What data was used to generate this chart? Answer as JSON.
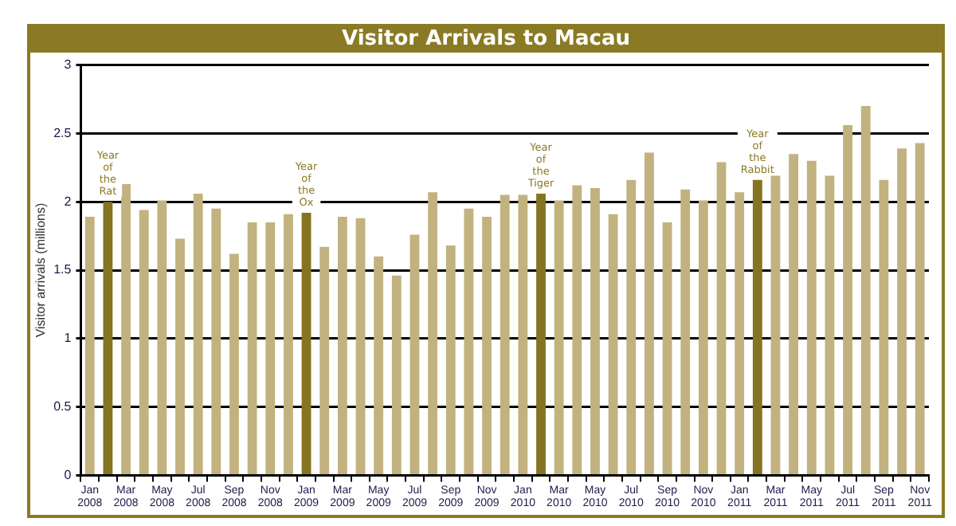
{
  "chart_data": {
    "type": "bar",
    "title": "Visitor Arrivals to Macau",
    "ylabel": "Visitor arrivals (millions)",
    "categories": [
      "Jan 2008",
      null,
      "Mar 2008",
      null,
      "May 2008",
      null,
      "Jul 2008",
      null,
      "Sep 2008",
      null,
      "Nov 2008",
      null,
      "Jan 2009",
      null,
      "Mar 2009",
      null,
      "May 2009",
      null,
      "Jul 2009",
      null,
      "Sep 2009",
      null,
      "Nov 2009",
      null,
      "Jan 2010",
      null,
      "Mar 2010",
      null,
      "May 2010",
      null,
      "Jul 2010",
      null,
      "Sep 2010",
      null,
      "Nov 2010",
      null,
      "Jan 2011",
      null,
      "Mar 2011",
      null,
      "May 2011",
      null,
      "Jul 2011",
      null,
      "Sep 2011",
      null,
      "Nov 2011"
    ],
    "values": [
      1.89,
      2.0,
      2.13,
      1.94,
      2.01,
      1.73,
      2.06,
      1.95,
      1.62,
      1.85,
      1.85,
      1.91,
      1.92,
      1.67,
      1.89,
      1.88,
      1.6,
      1.46,
      1.76,
      2.07,
      1.68,
      1.95,
      1.89,
      2.05,
      2.05,
      2.06,
      2.01,
      2.12,
      2.1,
      1.91,
      2.16,
      2.36,
      1.85,
      2.09,
      2.01,
      2.29,
      2.07,
      2.16,
      2.19,
      2.35,
      2.3,
      2.19,
      2.56,
      2.7,
      2.16,
      2.39,
      2.43
    ],
    "colors": [
      "#c2b27f",
      "#857421",
      "#c2b27f",
      "#c2b27f",
      "#c2b27f",
      "#c2b27f",
      "#c2b27f",
      "#c2b27f",
      "#c2b27f",
      "#c2b27f",
      "#c2b27f",
      "#c2b27f",
      "#857421",
      "#c2b27f",
      "#c2b27f",
      "#c2b27f",
      "#c2b27f",
      "#c2b27f",
      "#c2b27f",
      "#c2b27f",
      "#c2b27f",
      "#c2b27f",
      "#c2b27f",
      "#c2b27f",
      "#c2b27f",
      "#857421",
      "#c2b27f",
      "#c2b27f",
      "#c2b27f",
      "#c2b27f",
      "#c2b27f",
      "#c2b27f",
      "#c2b27f",
      "#c2b27f",
      "#c2b27f",
      "#c2b27f",
      "#c2b27f",
      "#857421",
      "#c2b27f",
      "#c2b27f",
      "#c2b27f",
      "#c2b27f",
      "#c2b27f",
      "#c2b27f",
      "#c2b27f",
      "#c2b27f",
      "#c2b27f"
    ],
    "annotations": [
      "Year of the Rat",
      "Year of the Ox",
      "Year of the Tiger",
      "Year of the Rabbit"
    ],
    "ylim": [
      0,
      3
    ],
    "yticks": [
      0,
      0.5,
      1,
      1.5,
      2,
      2.5,
      3
    ],
    "grid": "y",
    "legend": false
  }
}
